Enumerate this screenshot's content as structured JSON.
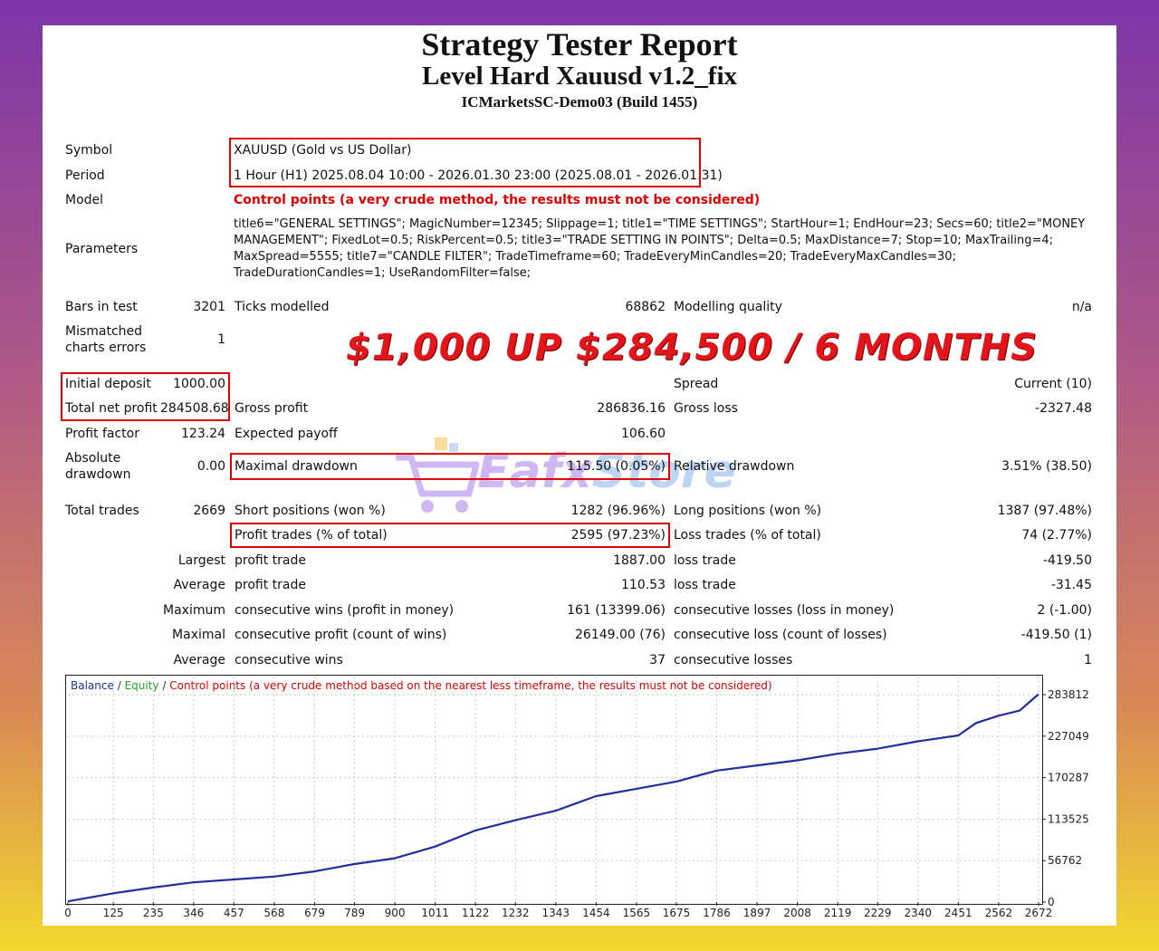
{
  "header": {
    "title": "Strategy Tester Report",
    "expert": "Level Hard Xauusd v1.2_fix",
    "server": "ICMarketsSC-Demo03 (Build 1455)"
  },
  "info": {
    "symbol_label": "Symbol",
    "symbol": "XAUUSD (Gold vs US Dollar)",
    "period_label": "Period",
    "period": "1 Hour (H1) 2025.08.04 10:00 - 2026.01.30 23:00 (2025.08.01 - 2026.01.31)",
    "model_label": "Model",
    "model": "Control points (a very crude method, the results must not be considered)",
    "parameters_label": "Parameters",
    "parameters": "title6=\"GENERAL SETTINGS\"; MagicNumber=12345; Slippage=1; title1=\"TIME SETTINGS\"; StartHour=1; EndHour=23; Secs=60; title2=\"MONEY MANAGEMENT\"; FixedLot=0.5; RiskPercent=0.5; title3=\"TRADE SETTING IN POINTS\"; Delta=0.5; MaxDistance=7; Stop=10; MaxTrailing=4; MaxSpread=5555; title7=\"CANDLE FILTER\"; TradeTimeframe=60; TradeEveryMinCandles=20; TradeEveryMaxCandles=30; TradeDurationCandles=1; UseRandomFilter=false;"
  },
  "stats": {
    "bars_label": "Bars in test",
    "bars": "3201",
    "ticks_label": "Ticks modelled",
    "ticks": "68862",
    "quality_label": "Modelling quality",
    "quality": "n/a",
    "mismatch_label_1": "Mismatched",
    "mismatch_label_2": "charts errors",
    "mismatch": "1",
    "initial_deposit_label": "Initial deposit",
    "initial_deposit": "1000.00",
    "spread_label": "Spread",
    "spread": "Current (10)",
    "net_profit_label": "Total net profit",
    "net_profit": "284508.68",
    "gross_profit_label": "Gross profit",
    "gross_profit": "286836.16",
    "gross_loss_label": "Gross loss",
    "gross_loss": "-2327.48",
    "profit_factor_label": "Profit factor",
    "profit_factor": "123.24",
    "expected_payoff_label": "Expected payoff",
    "expected_payoff": "106.60",
    "abs_dd_label_1": "Absolute",
    "abs_dd_label_2": "drawdown",
    "abs_dd": "0.00",
    "max_dd_label": "Maximal drawdown",
    "max_dd": "115.50 (0.05%)",
    "rel_dd_label": "Relative drawdown",
    "rel_dd": "3.51% (38.50)",
    "total_trades_label": "Total trades",
    "total_trades": "2669",
    "short_label": "Short positions (won %)",
    "short": "1282 (96.96%)",
    "long_label": "Long positions (won %)",
    "long": "1387 (97.48%)",
    "profit_trades_label": "Profit trades (% of total)",
    "profit_trades": "2595 (97.23%)",
    "loss_trades_label": "Loss trades (% of total)",
    "loss_trades": "74 (2.77%)",
    "largest_label": "Largest",
    "largest_profit_label": "profit trade",
    "largest_profit": "1887.00",
    "largest_loss_label": "loss trade",
    "largest_loss": "-419.50",
    "average_label": "Average",
    "average_profit_label": "profit trade",
    "average_profit": "110.53",
    "average_loss_label": "loss trade",
    "average_loss": "-31.45",
    "maximum_label": "Maximum",
    "max_cons_wins_label": "consecutive wins (profit in money)",
    "max_cons_wins": "161 (13399.06)",
    "max_cons_losses_label": "consecutive losses (loss in money)",
    "max_cons_losses": "2 (-1.00)",
    "maximal_label": "Maximal",
    "maximal_cons_profit_label": "consecutive profit (count of wins)",
    "maximal_cons_profit": "26149.00 (76)",
    "maximal_cons_loss_label": "consecutive loss (count of losses)",
    "maximal_cons_loss": "-419.50 (1)",
    "avg2_label": "Average",
    "avg_cons_wins_label": "consecutive wins",
    "avg_cons_wins": "37",
    "avg_cons_losses_label": "consecutive losses",
    "avg_cons_losses": "1"
  },
  "promo": {
    "text": "$1,000  UP $284,500 / 6 MONTHS"
  },
  "watermark": {
    "brand_a": "Eafx",
    "brand_b": "Store"
  },
  "colors": {
    "balance": "#1f2f9e",
    "equity": "#1faa24",
    "highlight": "#e30000",
    "promo": "#e4141b"
  },
  "chart_data": {
    "type": "line",
    "legend": [
      "Balance",
      "Equity",
      "Control points (a very crude method based on the nearest less timeframe, the results must not be considered)"
    ],
    "legend_sep": "/",
    "x_ticks": [
      0,
      125,
      235,
      346,
      457,
      568,
      679,
      789,
      900,
      1011,
      1122,
      1232,
      1343,
      1454,
      1565,
      1675,
      1786,
      1897,
      2008,
      2119,
      2229,
      2340,
      2451,
      2562,
      2672
    ],
    "y_ticks": [
      0,
      56762,
      113525,
      170287,
      227049,
      283812
    ],
    "xlim": [
      0,
      2669
    ],
    "ylim": [
      0,
      283812
    ],
    "grid": true,
    "series": [
      {
        "name": "Balance",
        "x": [
          0,
          125,
          235,
          346,
          457,
          568,
          679,
          789,
          900,
          1011,
          1122,
          1232,
          1343,
          1454,
          1565,
          1675,
          1786,
          1897,
          2008,
          2119,
          2229,
          2340,
          2451,
          2500,
          2562,
          2620,
          2672
        ],
        "y": [
          1000,
          12000,
          20000,
          27000,
          31000,
          35000,
          42000,
          52000,
          60000,
          76000,
          98000,
          112000,
          125000,
          145000,
          155000,
          165000,
          180000,
          187000,
          194000,
          203000,
          210000,
          220000,
          228000,
          245000,
          255000,
          262000,
          284509
        ]
      }
    ]
  }
}
